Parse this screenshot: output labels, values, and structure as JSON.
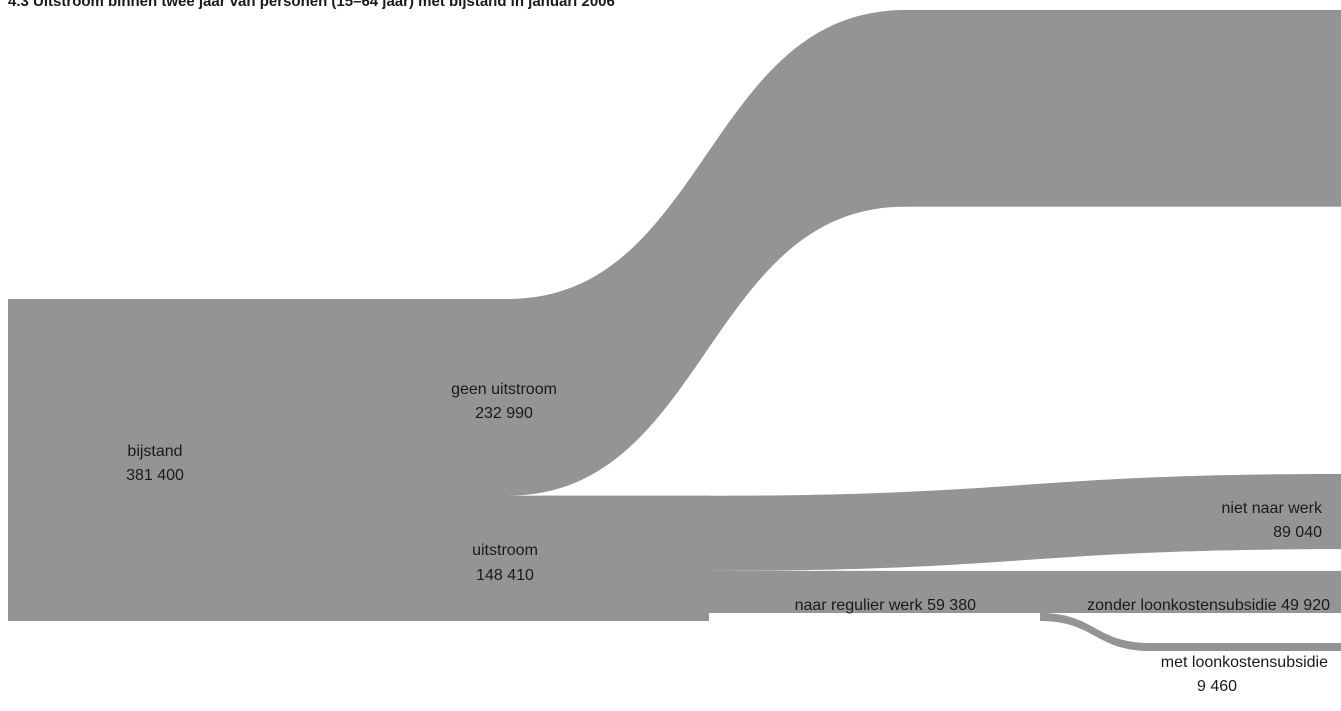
{
  "title": "4.3 Uitstroom binnen twee jaar van personen (15–64 jaar) met bijstand in januari 2006",
  "colors": {
    "flow": "#949494",
    "text": "#1a1a1a",
    "background": "#ffffff"
  },
  "chart_data": {
    "type": "sankey",
    "nodes": [
      {
        "id": "bijstand",
        "name": "bijstand",
        "value": "381 400"
      },
      {
        "id": "geen_uitstroom",
        "name": "geen uitstroom",
        "value": "232 990"
      },
      {
        "id": "uitstroom",
        "name": "uitstroom",
        "value": "148 410"
      },
      {
        "id": "niet_naar_werk",
        "name": "niet naar werk",
        "value": "89 040"
      },
      {
        "id": "naar_regulier_werk",
        "name": "naar regulier werk",
        "value": "59 380"
      },
      {
        "id": "zonder_loonkostensubsidie",
        "name": "zonder loonkostensubsidie",
        "value": "49 920"
      },
      {
        "id": "met_loonkostensubsidie",
        "name": "met loonkostensubsidie",
        "value": "9 460"
      }
    ],
    "links": [
      {
        "source": "bijstand",
        "target": "geen_uitstroom",
        "value": 232990
      },
      {
        "source": "bijstand",
        "target": "uitstroom",
        "value": 148410
      },
      {
        "source": "uitstroom",
        "target": "niet_naar_werk",
        "value": 89040
      },
      {
        "source": "uitstroom",
        "target": "naar_regulier_werk",
        "value": 59380
      },
      {
        "source": "naar_regulier_werk",
        "target": "zonder_loonkostensubsidie",
        "value": 49920
      },
      {
        "source": "naar_regulier_werk",
        "target": "met_loonkostensubsidie",
        "value": 9460
      }
    ]
  }
}
